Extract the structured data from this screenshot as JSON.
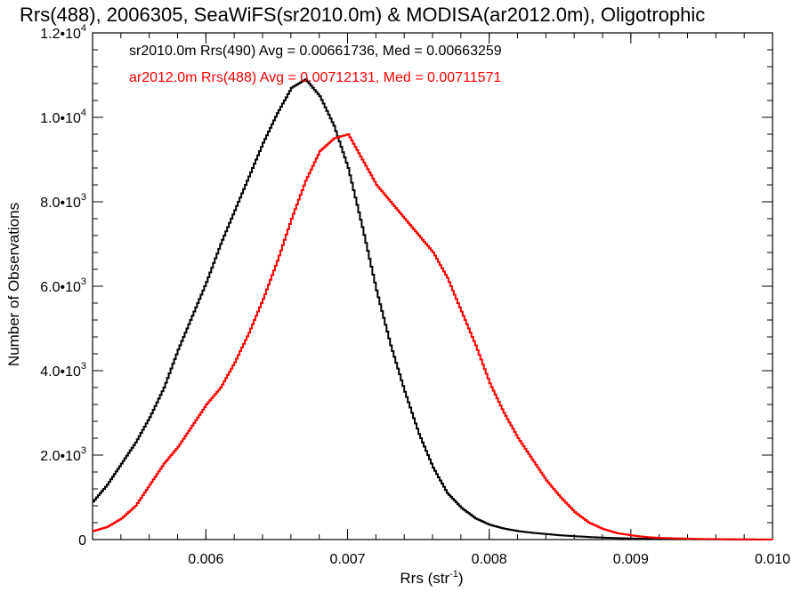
{
  "chart_data": {
    "type": "line",
    "title": "Rrs(488), 2006305, SeaWiFS(sr2010.0m) & MODISA(ar2012.0m), Oligotrophic",
    "xlabel_main": "Rrs (str",
    "xlabel_sup": "-1",
    "xlabel_close": ")",
    "ylabel": "Number of Observations",
    "xlim": [
      0.0052,
      0.01
    ],
    "ylim": [
      0,
      12000
    ],
    "x_ticks": [
      {
        "value": 0.006,
        "label": "0.006"
      },
      {
        "value": 0.007,
        "label": "0.007"
      },
      {
        "value": 0.008,
        "label": "0.008"
      },
      {
        "value": 0.009,
        "label": "0.009"
      },
      {
        "value": 0.01,
        "label": "0.010"
      }
    ],
    "y_ticks": [
      {
        "value": 0,
        "mant": "0",
        "exp": ""
      },
      {
        "value": 2000,
        "mant": "2.0•10",
        "exp": "3"
      },
      {
        "value": 4000,
        "mant": "4.0•10",
        "exp": "3"
      },
      {
        "value": 6000,
        "mant": "6.0•10",
        "exp": "3"
      },
      {
        "value": 8000,
        "mant": "8.0•10",
        "exp": "3"
      },
      {
        "value": 10000,
        "mant": "1.0•10",
        "exp": "4"
      },
      {
        "value": 12000,
        "mant": "1.2•10",
        "exp": "4"
      }
    ],
    "series": [
      {
        "name": "sr2010.0m Rrs(490)",
        "legend": "sr2010.0m Rrs(490) Avg = 0.00661736, Med = 0.00663259",
        "color": "#000000",
        "x": [
          0.0052,
          0.0053,
          0.0054,
          0.0055,
          0.0056,
          0.0057,
          0.0058,
          0.0059,
          0.006,
          0.0061,
          0.0062,
          0.0063,
          0.0064,
          0.0065,
          0.0066,
          0.0067,
          0.0068,
          0.0069,
          0.007,
          0.0071,
          0.0072,
          0.0073,
          0.0074,
          0.0075,
          0.0076,
          0.0077,
          0.0078,
          0.0079,
          0.008,
          0.0081,
          0.0082,
          0.0083,
          0.0084,
          0.0085,
          0.0086,
          0.0087,
          0.0088,
          0.0089,
          0.009,
          0.0092,
          0.0094,
          0.0096,
          0.0098,
          0.01
        ],
        "y": [
          900,
          1300,
          1800,
          2300,
          2900,
          3600,
          4500,
          5300,
          6100,
          7000,
          7800,
          8600,
          9400,
          10100,
          10700,
          10900,
          10500,
          9800,
          8800,
          7400,
          5900,
          4600,
          3500,
          2500,
          1700,
          1100,
          750,
          500,
          350,
          260,
          200,
          160,
          130,
          100,
          80,
          60,
          45,
          35,
          25,
          15,
          10,
          5,
          2,
          0
        ]
      },
      {
        "name": "ar2012.0m Rrs(488)",
        "legend": "ar2012.0m Rrs(488) Avg = 0.00712131, Med = 0.00711571",
        "color": "#ff0000",
        "x": [
          0.0052,
          0.0053,
          0.0054,
          0.0055,
          0.0056,
          0.0057,
          0.0058,
          0.0059,
          0.006,
          0.0061,
          0.0062,
          0.0063,
          0.0064,
          0.0065,
          0.0066,
          0.0067,
          0.0068,
          0.0069,
          0.007,
          0.0071,
          0.0072,
          0.0073,
          0.0074,
          0.0075,
          0.0076,
          0.0077,
          0.0078,
          0.0079,
          0.008,
          0.0081,
          0.0082,
          0.0083,
          0.0084,
          0.0085,
          0.0086,
          0.0087,
          0.0088,
          0.0089,
          0.009,
          0.0091,
          0.0092,
          0.0094,
          0.0096,
          0.0098,
          0.01
        ],
        "y": [
          200,
          300,
          500,
          800,
          1300,
          1800,
          2200,
          2700,
          3200,
          3600,
          4200,
          4900,
          5700,
          6600,
          7600,
          8500,
          9200,
          9500,
          9600,
          9000,
          8400,
          8000,
          7600,
          7200,
          6800,
          6200,
          5400,
          4600,
          3700,
          3000,
          2400,
          1900,
          1400,
          1000,
          650,
          400,
          250,
          150,
          100,
          60,
          40,
          20,
          10,
          5,
          0
        ]
      }
    ]
  }
}
